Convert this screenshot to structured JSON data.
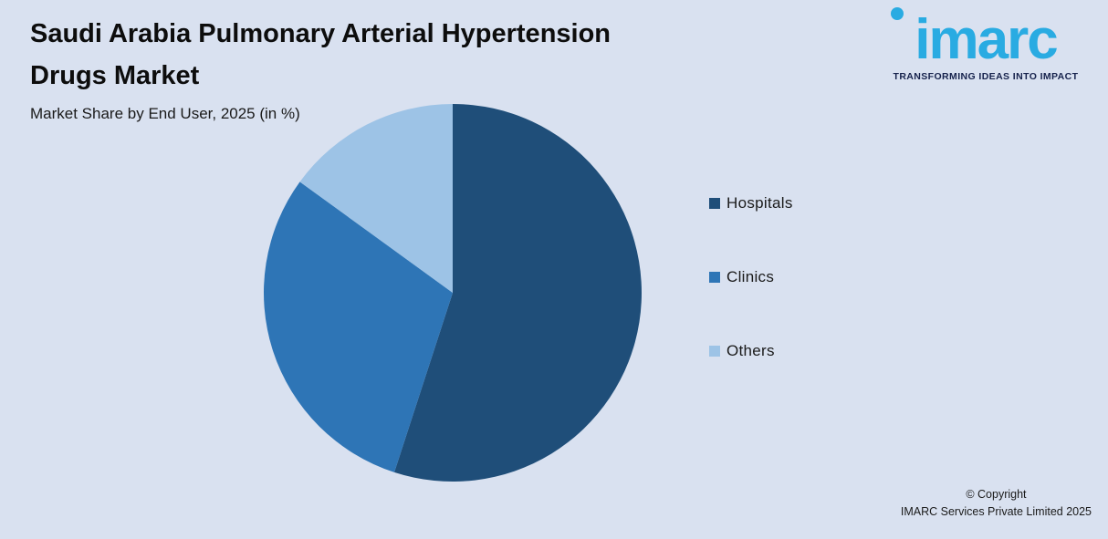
{
  "header": {
    "title_line1": "Saudi Arabia Pulmonary Arterial Hypertension",
    "title_line2": "Drugs Market",
    "subtitle": "Market Share by End User, 2025 (in %)"
  },
  "logo": {
    "text": "imarc",
    "tagline": "TRANSFORMING IDEAS INTO IMPACT",
    "brand_color": "#29ABE2",
    "tagline_color": "#16224C"
  },
  "chart_data": {
    "type": "pie",
    "title": "Saudi Arabia Pulmonary Arterial Hypertension Drugs Market",
    "subtitle": "Market Share by End User, 2025 (in %)",
    "units": "%",
    "start_angle_deg": 0,
    "direction": "clockwise",
    "legend_position": "right",
    "slices": [
      {
        "label": "Hospitals",
        "value": 55,
        "color": "#1F4E79"
      },
      {
        "label": "Clinics",
        "value": 30,
        "color": "#2E75B6"
      },
      {
        "label": "Others",
        "value": 15,
        "color": "#9DC3E6"
      }
    ]
  },
  "footer": {
    "copyright_line1": "© Copyright",
    "copyright_line2": "IMARC Services Private Limited 2025"
  },
  "colors": {
    "background": "#D9E1F0"
  }
}
